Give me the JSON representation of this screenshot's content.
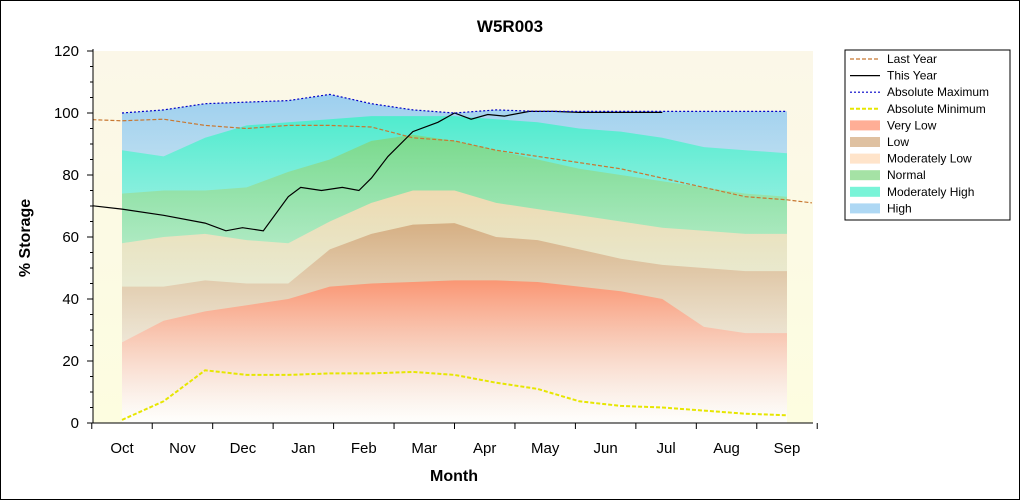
{
  "chart_data": {
    "type": "area",
    "title": "W5R003",
    "xlabel": "Month",
    "ylabel": "% Storage",
    "ylim": [
      0,
      120
    ],
    "yticks": [
      "0",
      "20",
      "40",
      "60",
      "80",
      "100",
      "120"
    ],
    "categories": [
      "Oct",
      "Nov",
      "Dec",
      "Jan",
      "Feb",
      "Mar",
      "Apr",
      "May",
      "Jun",
      "Jul",
      "Aug",
      "Sep"
    ],
    "legend_position": "right",
    "legend": [
      "Last Year",
      "This Year",
      "Absolute Maximum",
      "Absolute Minimum",
      "Very Low",
      "Low",
      "Moderately Low",
      "Normal",
      "Moderately High",
      "High"
    ],
    "bands": [
      {
        "name": "Very Low",
        "color": "#ff8c69",
        "upper": [
          [
            0,
            26
          ],
          [
            0.5,
            33
          ],
          [
            1,
            36
          ],
          [
            1.5,
            38
          ],
          [
            2,
            40
          ],
          [
            2.5,
            44
          ],
          [
            3,
            45
          ],
          [
            3.5,
            45.5
          ],
          [
            4,
            46
          ],
          [
            4.5,
            46
          ],
          [
            5,
            45.5
          ],
          [
            5.5,
            44
          ],
          [
            6,
            42.5
          ],
          [
            6.5,
            40
          ],
          [
            7,
            31
          ],
          [
            7.5,
            29
          ],
          [
            8,
            29
          ]
        ]
      },
      {
        "name": "Low",
        "color": "#d2a679",
        "upper": [
          [
            0,
            44
          ],
          [
            0.5,
            44
          ],
          [
            1,
            46
          ],
          [
            1.5,
            45
          ],
          [
            2,
            45
          ],
          [
            2.5,
            56
          ],
          [
            3,
            61
          ],
          [
            3.5,
            64
          ],
          [
            4,
            64.5
          ],
          [
            4.5,
            60
          ],
          [
            5,
            59
          ],
          [
            5.5,
            56
          ],
          [
            6,
            53
          ],
          [
            6.5,
            51
          ],
          [
            7,
            50
          ],
          [
            7.5,
            49
          ],
          [
            8,
            49
          ]
        ]
      },
      {
        "name": "Moderately Low",
        "color": "#ffd9b3",
        "upper": [
          [
            0,
            58
          ],
          [
            0.5,
            60
          ],
          [
            1,
            61
          ],
          [
            1.5,
            59
          ],
          [
            2,
            58
          ],
          [
            2.5,
            65
          ],
          [
            3,
            71
          ],
          [
            3.5,
            75
          ],
          [
            4,
            75
          ],
          [
            4.5,
            71
          ],
          [
            5,
            69
          ],
          [
            5.5,
            67
          ],
          [
            6,
            65
          ],
          [
            6.5,
            63
          ],
          [
            7,
            62
          ],
          [
            7.5,
            61
          ],
          [
            8,
            61
          ]
        ]
      },
      {
        "name": "Normal",
        "color": "#7fd67f",
        "upper": [
          [
            0,
            74
          ],
          [
            0.5,
            75
          ],
          [
            1,
            75
          ],
          [
            1.5,
            76
          ],
          [
            2,
            81
          ],
          [
            2.5,
            85
          ],
          [
            3,
            91
          ],
          [
            3.5,
            93
          ],
          [
            4,
            91
          ],
          [
            4.5,
            88
          ],
          [
            5,
            85
          ],
          [
            5.5,
            82
          ],
          [
            6,
            80
          ],
          [
            6.5,
            78
          ],
          [
            7,
            76
          ],
          [
            7.5,
            74
          ],
          [
            8,
            73
          ]
        ]
      },
      {
        "name": "Moderately High",
        "color": "#40f0c8",
        "upper": [
          [
            0,
            88
          ],
          [
            0.5,
            86
          ],
          [
            1,
            92
          ],
          [
            1.5,
            96
          ],
          [
            2,
            97
          ],
          [
            2.5,
            98
          ],
          [
            3,
            99
          ],
          [
            3.5,
            99
          ],
          [
            4,
            99
          ],
          [
            4.5,
            98
          ],
          [
            5,
            97
          ],
          [
            5.5,
            95
          ],
          [
            6,
            94
          ],
          [
            6.5,
            92
          ],
          [
            7,
            89
          ],
          [
            7.5,
            88
          ],
          [
            8,
            87
          ]
        ]
      },
      {
        "name": "High",
        "color": "#8cc8f0",
        "upper": [
          [
            0,
            100
          ],
          [
            0.5,
            101
          ],
          [
            1,
            103
          ],
          [
            1.5,
            103.5
          ],
          [
            2,
            104
          ],
          [
            2.5,
            106
          ],
          [
            3,
            103
          ],
          [
            3.5,
            101
          ],
          [
            4,
            100
          ],
          [
            4.5,
            101
          ],
          [
            5,
            100.5
          ],
          [
            5.5,
            100.5
          ],
          [
            6,
            100.5
          ],
          [
            6.5,
            100.5
          ],
          [
            7,
            100.5
          ],
          [
            7.5,
            100.5
          ],
          [
            8,
            100.5
          ]
        ]
      }
    ],
    "series": [
      {
        "name": "Last Year",
        "color": "#c87832",
        "style": "dashed",
        "points": [
          [
            -0.5,
            98
          ],
          [
            0,
            97.5
          ],
          [
            0.5,
            98
          ],
          [
            1,
            96
          ],
          [
            1.5,
            95
          ],
          [
            2,
            96
          ],
          [
            2.5,
            96
          ],
          [
            3,
            95.5
          ],
          [
            3.5,
            92
          ],
          [
            4,
            91
          ],
          [
            4.5,
            88
          ],
          [
            5,
            86
          ],
          [
            5.5,
            84
          ],
          [
            6,
            82
          ],
          [
            6.5,
            79
          ],
          [
            7,
            76
          ],
          [
            7.5,
            73
          ],
          [
            8,
            72
          ],
          [
            8.3,
            71
          ]
        ]
      },
      {
        "name": "This Year",
        "color": "#000000",
        "style": "solid",
        "points": [
          [
            -0.5,
            70.5
          ],
          [
            0,
            69
          ],
          [
            0.5,
            67
          ],
          [
            1,
            64.5
          ],
          [
            1.25,
            62
          ],
          [
            1.45,
            63
          ],
          [
            1.7,
            62
          ],
          [
            2,
            73
          ],
          [
            2.15,
            76
          ],
          [
            2.4,
            75
          ],
          [
            2.65,
            76
          ],
          [
            2.85,
            75
          ],
          [
            3,
            79
          ],
          [
            3.2,
            86
          ],
          [
            3.5,
            94
          ],
          [
            3.8,
            97
          ],
          [
            4.0,
            100
          ],
          [
            4.2,
            98
          ],
          [
            4.4,
            99.5
          ],
          [
            4.6,
            99
          ],
          [
            4.9,
            100.5
          ],
          [
            5.2,
            100.5
          ],
          [
            5.5,
            100.2
          ],
          [
            6.5,
            100.2
          ]
        ]
      },
      {
        "name": "Absolute Maximum",
        "color": "#0000c8",
        "style": "dotted",
        "points": [
          [
            0,
            100
          ],
          [
            0.5,
            101
          ],
          [
            1,
            103
          ],
          [
            1.5,
            103.5
          ],
          [
            2,
            104
          ],
          [
            2.5,
            106
          ],
          [
            3,
            103
          ],
          [
            3.5,
            101
          ],
          [
            4,
            100
          ],
          [
            4.5,
            101
          ],
          [
            5,
            100.5
          ],
          [
            5.5,
            100.5
          ],
          [
            6,
            100.5
          ],
          [
            6.5,
            100.5
          ],
          [
            7,
            100.5
          ],
          [
            7.5,
            100.5
          ],
          [
            8,
            100.5
          ]
        ]
      },
      {
        "name": "Absolute Minimum",
        "color": "#e6e600",
        "style": "dashed",
        "points": [
          [
            0,
            1
          ],
          [
            0.5,
            7
          ],
          [
            1,
            17
          ],
          [
            1.5,
            15.5
          ],
          [
            2,
            15.5
          ],
          [
            2.5,
            16
          ],
          [
            3,
            16
          ],
          [
            3.5,
            16.5
          ],
          [
            4,
            15.5
          ],
          [
            4.5,
            13
          ],
          [
            5,
            11
          ],
          [
            5.5,
            7
          ],
          [
            6,
            5.5
          ],
          [
            6.5,
            5
          ],
          [
            7,
            4
          ],
          [
            7.5,
            3
          ],
          [
            8,
            2.5
          ]
        ]
      }
    ]
  }
}
